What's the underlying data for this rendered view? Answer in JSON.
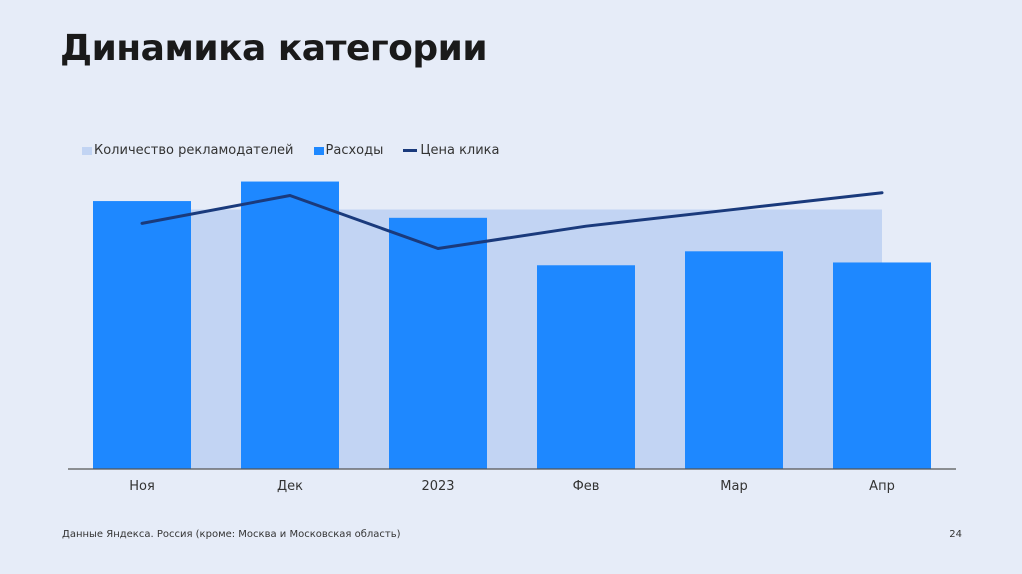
{
  "page": {
    "title": "Динамика категории",
    "source": "Данные Яндекса. Россия (кроме: Москва и Московская область)",
    "page_number": "24"
  },
  "colors": {
    "background": "#E6ECF8",
    "advertisers": "#C2D4F3",
    "expenses": "#1E88FF",
    "click_price": "#1A3A7C",
    "axis": "#555555"
  },
  "legend": {
    "advertisers": "Количество рекламодателей",
    "expenses": "Расходы",
    "click_price": "Цена клика"
  },
  "chart_data": {
    "type": "bar",
    "categories": [
      "Ноя",
      "Дек",
      "2023",
      "Фев",
      "Мар",
      "Апр"
    ],
    "series": [
      {
        "name": "Количество рекламодателей",
        "kind": "area",
        "values": [
          93,
          93,
          93,
          93,
          93,
          93
        ]
      },
      {
        "name": "Расходы",
        "kind": "bar",
        "values": [
          96,
          103,
          90,
          73,
          78,
          74
        ]
      },
      {
        "name": "Цена клика",
        "kind": "line",
        "values": [
          88,
          98,
          79,
          87,
          93,
          99
        ]
      }
    ],
    "ylim": [
      0,
      110
    ],
    "grid": false,
    "legend_position": "top-left",
    "y_axis_labels_visible": false
  }
}
